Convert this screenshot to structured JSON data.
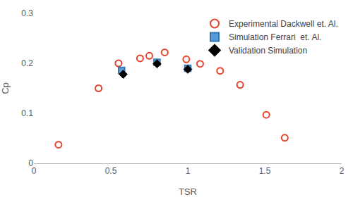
{
  "chart_data": {
    "type": "scatter",
    "x_label": "TSR",
    "y_label": "Cp",
    "xlim": [
      0,
      2
    ],
    "xticks": [
      0,
      0.5,
      1,
      1.5,
      2
    ],
    "ylim": [
      0,
      0.3
    ],
    "yticks": [
      0,
      0.1,
      0.2,
      0.3
    ],
    "grid": false,
    "legend": "top right",
    "series": [
      {
        "name": "Experimental Dackwell et. Al.",
        "color": "#e8412c",
        "marker": "circle-open",
        "x": [
          0.16,
          0.42,
          0.55,
          0.69,
          0.75,
          0.85,
          0.99,
          1.08,
          1.21,
          1.34,
          1.51,
          1.63
        ],
        "values": [
          0.037,
          0.15,
          0.2,
          0.21,
          0.215,
          0.222,
          0.208,
          0.199,
          0.185,
          0.157,
          0.097,
          0.051
        ]
      },
      {
        "name": "Simulation Ferrari  et. Al.",
        "color": "#5b9bd5",
        "marker": "square",
        "x": [
          0.57,
          0.8,
          1.0
        ],
        "values": [
          0.186,
          0.202,
          0.19
        ]
      },
      {
        "name": "Validation Simulation",
        "color": "#000000",
        "marker": "diamond",
        "x": [
          0.58,
          0.8,
          1.0
        ],
        "values": [
          0.178,
          0.199,
          0.188
        ]
      }
    ]
  }
}
